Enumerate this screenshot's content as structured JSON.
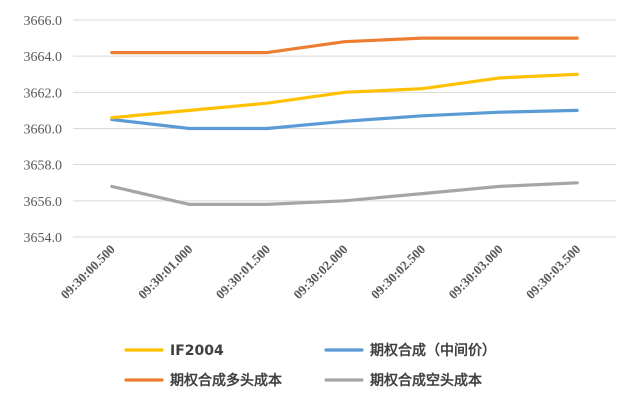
{
  "chart_data": {
    "type": "line",
    "categories": [
      "09:30:00.500",
      "09:30:01.000",
      "09:30:01.500",
      "09:30:02.000",
      "09:30:02.500",
      "09:30:03.000",
      "09:30:03.500"
    ],
    "ylim": [
      3654.0,
      3666.0
    ],
    "yticks": [
      "3654.0",
      "3656.0",
      "3658.0",
      "3660.0",
      "3662.0",
      "3664.0",
      "3666.0"
    ],
    "grid": true,
    "legend_position": "bottom",
    "series": [
      {
        "name": "IF2004",
        "color": "#FFC000",
        "values": [
          3660.6,
          3661.0,
          3661.4,
          3662.0,
          3662.2,
          3662.8,
          3663.0
        ]
      },
      {
        "name": "期权合成（中间价）",
        "color": "#5B9BD5",
        "values": [
          3660.5,
          3660.0,
          3660.0,
          3660.4,
          3660.7,
          3660.9,
          3661.0
        ]
      },
      {
        "name": "期权合成多头成本",
        "color": "#ED7D31",
        "values": [
          3664.2,
          3664.2,
          3664.2,
          3664.8,
          3665.0,
          3665.0,
          3665.0
        ]
      },
      {
        "name": "期权合成空头成本",
        "color": "#A5A5A5",
        "values": [
          3656.8,
          3655.8,
          3655.8,
          3656.0,
          3656.4,
          3656.8,
          3657.0
        ]
      }
    ]
  }
}
